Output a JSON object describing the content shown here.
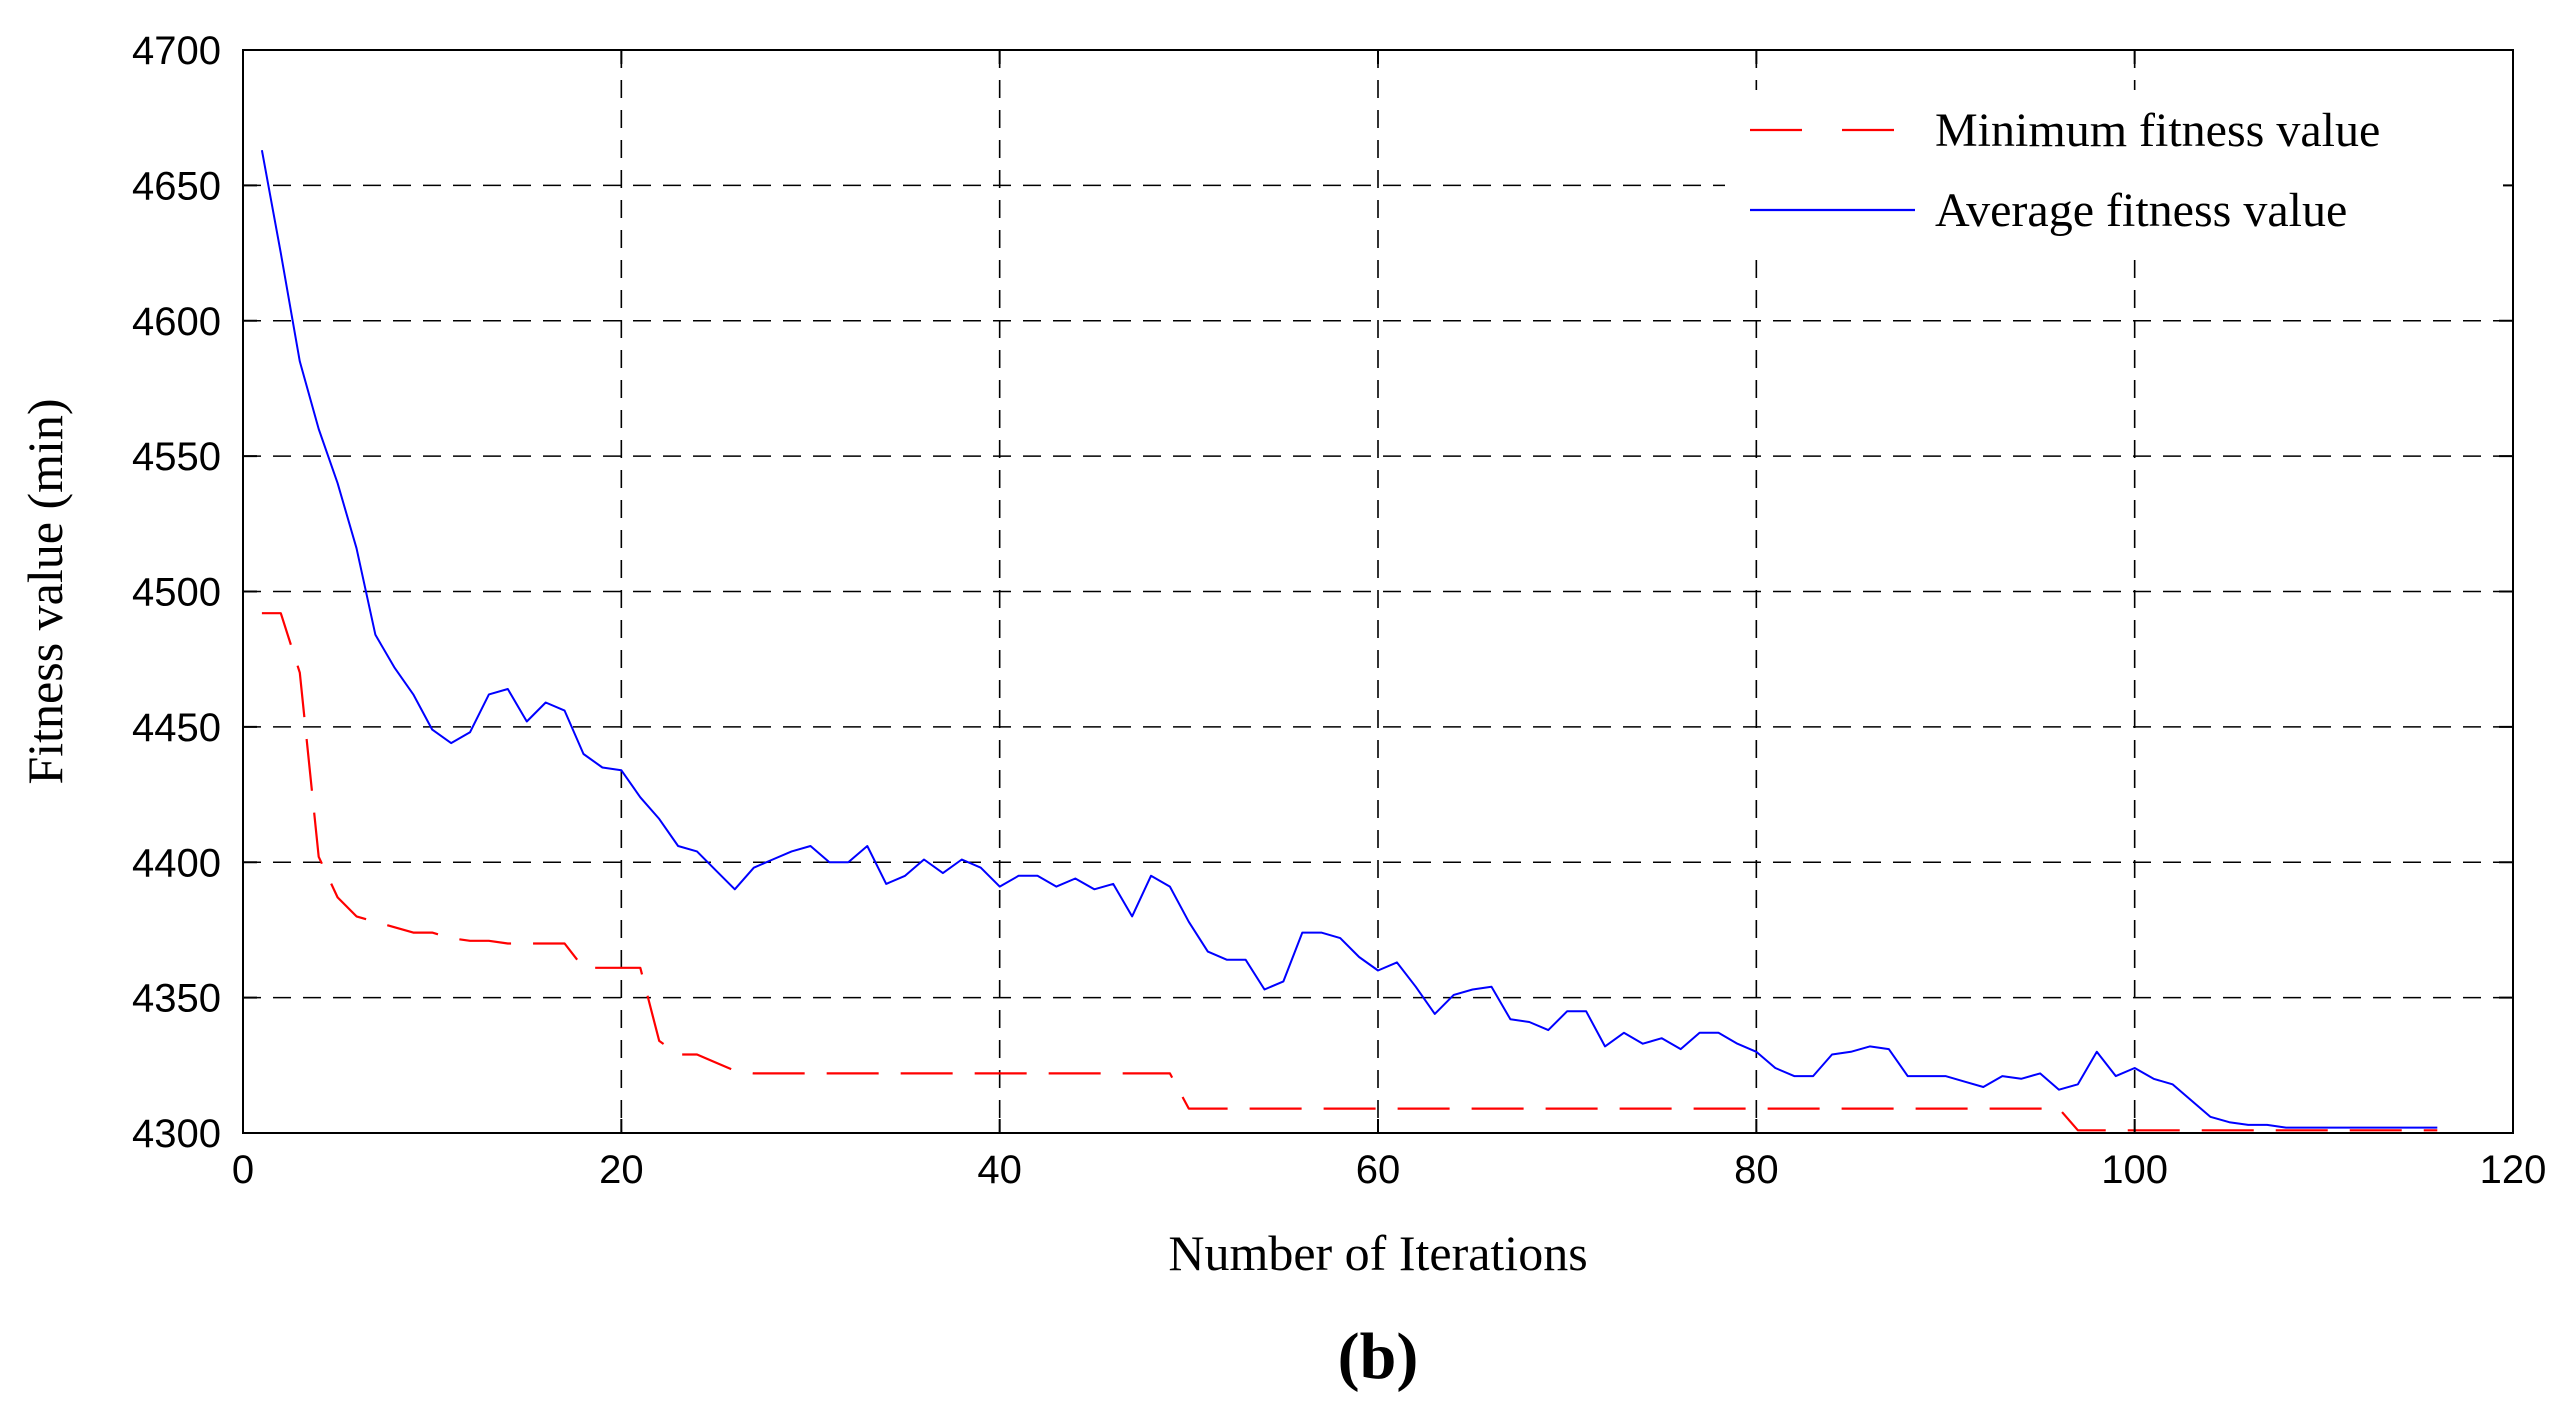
{
  "chart_data": {
    "type": "line",
    "title": "",
    "xlabel": "Number of Iterations",
    "ylabel": "Fitness value (min)",
    "panel_label_open": "(",
    "panel_label_letter": "b",
    "panel_label_close": ")",
    "xlim": [
      0,
      120
    ],
    "ylim": [
      4300,
      4700
    ],
    "xticks": [
      0,
      20,
      40,
      60,
      80,
      100,
      120
    ],
    "yticks": [
      4300,
      4350,
      4400,
      4450,
      4500,
      4550,
      4600,
      4650,
      4700
    ],
    "grid": true,
    "legend_position": "top-right",
    "series": [
      {
        "name": "Minimum fitness value",
        "color": "#ff0000",
        "style": "dashed",
        "x": [
          1,
          2,
          3,
          4,
          5,
          6,
          7,
          8,
          9,
          10,
          11,
          12,
          13,
          14,
          15,
          16,
          17,
          18,
          19,
          20,
          21,
          22,
          23,
          24,
          25,
          26,
          27,
          28,
          29,
          30,
          31,
          32,
          33,
          34,
          35,
          36,
          37,
          38,
          39,
          40,
          41,
          42,
          43,
          44,
          45,
          46,
          47,
          48,
          49,
          50,
          51,
          52,
          53,
          54,
          55,
          56,
          57,
          58,
          59,
          60,
          61,
          62,
          63,
          64,
          65,
          66,
          67,
          68,
          69,
          70,
          71,
          72,
          73,
          74,
          75,
          76,
          77,
          78,
          79,
          80,
          81,
          82,
          83,
          84,
          85,
          86,
          87,
          88,
          89,
          90,
          91,
          92,
          93,
          94,
          95,
          96,
          97,
          98,
          99,
          100,
          101,
          102,
          103,
          104,
          105,
          106,
          107,
          108,
          109,
          110,
          111,
          112,
          113,
          114,
          115,
          116
        ],
        "y": [
          4492,
          4492,
          4470,
          4402,
          4387,
          4380,
          4378,
          4376,
          4374,
          4374,
          4372,
          4371,
          4371,
          4370,
          4370,
          4370,
          4370,
          4361,
          4361,
          4361,
          4361,
          4334,
          4329,
          4329,
          4326,
          4323,
          4322,
          4322,
          4322,
          4322,
          4322,
          4322,
          4322,
          4322,
          4322,
          4322,
          4322,
          4322,
          4322,
          4322,
          4322,
          4322,
          4322,
          4322,
          4322,
          4322,
          4322,
          4322,
          4322,
          4309,
          4309,
          4309,
          4309,
          4309,
          4309,
          4309,
          4309,
          4309,
          4309,
          4309,
          4309,
          4309,
          4309,
          4309,
          4309,
          4309,
          4309,
          4309,
          4309,
          4309,
          4309,
          4309,
          4309,
          4309,
          4309,
          4309,
          4309,
          4309,
          4309,
          4309,
          4309,
          4309,
          4309,
          4309,
          4309,
          4309,
          4309,
          4309,
          4309,
          4309,
          4309,
          4309,
          4309,
          4309,
          4309,
          4309,
          4301,
          4301,
          4301,
          4301,
          4301,
          4301,
          4301,
          4301,
          4301,
          4301,
          4301,
          4301,
          4301,
          4301,
          4301,
          4301,
          4301,
          4301,
          4301,
          4301
        ]
      },
      {
        "name": "Average fitness value",
        "color": "#0000ff",
        "style": "solid",
        "x": [
          1,
          2,
          3,
          4,
          5,
          6,
          7,
          8,
          9,
          10,
          11,
          12,
          13,
          14,
          15,
          16,
          17,
          18,
          19,
          20,
          21,
          22,
          23,
          24,
          25,
          26,
          27,
          28,
          29,
          30,
          31,
          32,
          33,
          34,
          35,
          36,
          37,
          38,
          39,
          40,
          41,
          42,
          43,
          44,
          45,
          46,
          47,
          48,
          49,
          50,
          51,
          52,
          53,
          54,
          55,
          56,
          57,
          58,
          59,
          60,
          61,
          62,
          63,
          64,
          65,
          66,
          67,
          68,
          69,
          70,
          71,
          72,
          73,
          74,
          75,
          76,
          77,
          78,
          79,
          80,
          81,
          82,
          83,
          84,
          85,
          86,
          87,
          88,
          89,
          90,
          91,
          92,
          93,
          94,
          95,
          96,
          97,
          98,
          99,
          100,
          101,
          102,
          103,
          104,
          105,
          106,
          107,
          108,
          109,
          110,
          111,
          112,
          113,
          114,
          115,
          116
        ],
        "y": [
          4663,
          4625,
          4585,
          4560,
          4540,
          4516,
          4484,
          4472,
          4462,
          4449,
          4444,
          4448,
          4462,
          4464,
          4452,
          4459,
          4456,
          4440,
          4435,
          4434,
          4424,
          4416,
          4406,
          4404,
          4397,
          4390,
          4398,
          4401,
          4404,
          4406,
          4400,
          4400,
          4406,
          4392,
          4395,
          4401,
          4396,
          4401,
          4398,
          4391,
          4395,
          4395,
          4391,
          4394,
          4390,
          4392,
          4380,
          4395,
          4391,
          4378,
          4367,
          4364,
          4364,
          4353,
          4356,
          4374,
          4374,
          4372,
          4365,
          4360,
          4363,
          4354,
          4344,
          4351,
          4353,
          4354,
          4342,
          4341,
          4338,
          4345,
          4345,
          4332,
          4337,
          4333,
          4335,
          4331,
          4337,
          4337,
          4333,
          4330,
          4324,
          4321,
          4321,
          4329,
          4330,
          4332,
          4331,
          4321,
          4321,
          4321,
          4319,
          4317,
          4321,
          4320,
          4322,
          4316,
          4318,
          4330,
          4321,
          4324,
          4320,
          4318,
          4312,
          4306,
          4304,
          4303,
          4303,
          4302,
          4302,
          4302,
          4302,
          4302,
          4302,
          4302,
          4302,
          4302
        ]
      }
    ]
  }
}
